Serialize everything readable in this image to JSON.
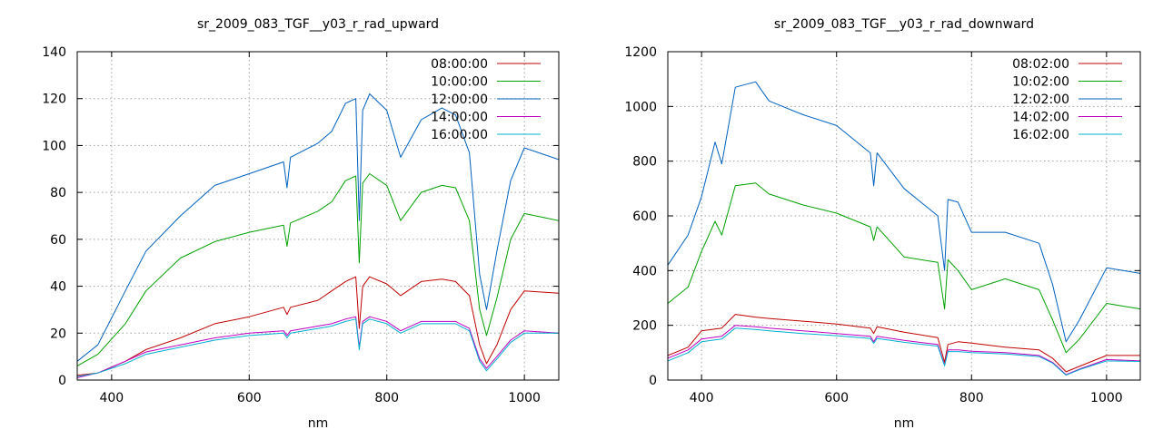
{
  "chart_data": [
    {
      "type": "line",
      "title": "sr_2009_083_TGF__y03_r_rad_upward",
      "xlabel": "nm",
      "ylabel": "",
      "xlim": [
        350,
        1050
      ],
      "ylim": [
        0,
        140
      ],
      "xticks": [
        400,
        600,
        800,
        1000
      ],
      "yticks": [
        0,
        20,
        40,
        60,
        80,
        100,
        120,
        140
      ],
      "grid": true,
      "legend_position": "top-right",
      "series": [
        {
          "name": "08:00:00",
          "color": "#c00000",
          "x": [
            350,
            380,
            420,
            450,
            500,
            550,
            600,
            650,
            655,
            660,
            700,
            720,
            740,
            755,
            760,
            765,
            775,
            800,
            820,
            850,
            880,
            900,
            920,
            935,
            945,
            960,
            980,
            1000,
            1050
          ],
          "y": [
            2,
            3,
            8,
            13,
            18,
            24,
            27,
            31,
            28,
            31,
            34,
            38,
            42,
            44,
            22,
            40,
            44,
            41,
            36,
            42,
            43,
            42,
            36,
            15,
            7,
            15,
            30,
            38,
            37
          ]
        },
        {
          "name": "10:00:00",
          "color": "#00a000",
          "x": [
            350,
            380,
            420,
            450,
            500,
            550,
            600,
            650,
            655,
            660,
            700,
            720,
            740,
            755,
            760,
            765,
            775,
            800,
            820,
            850,
            880,
            900,
            920,
            935,
            945,
            960,
            980,
            1000,
            1050
          ],
          "y": [
            6,
            11,
            24,
            38,
            52,
            59,
            63,
            66,
            57,
            67,
            72,
            76,
            85,
            87,
            50,
            84,
            88,
            83,
            68,
            80,
            83,
            82,
            68,
            30,
            19,
            35,
            60,
            71,
            68
          ]
        },
        {
          "name": "12:00:00",
          "color": "#0060c0",
          "x": [
            350,
            380,
            420,
            450,
            500,
            550,
            600,
            650,
            655,
            660,
            700,
            720,
            740,
            755,
            760,
            765,
            775,
            800,
            820,
            850,
            880,
            900,
            920,
            935,
            945,
            960,
            980,
            1000,
            1050
          ],
          "y": [
            8,
            15,
            38,
            55,
            70,
            83,
            88,
            93,
            82,
            95,
            101,
            106,
            118,
            120,
            68,
            115,
            122,
            115,
            95,
            111,
            116,
            113,
            97,
            45,
            30,
            55,
            85,
            99,
            94
          ]
        },
        {
          "name": "14:00:00",
          "color": "#c000c0",
          "x": [
            350,
            380,
            420,
            450,
            500,
            550,
            600,
            650,
            655,
            660,
            700,
            720,
            740,
            755,
            760,
            765,
            775,
            800,
            820,
            850,
            880,
            900,
            920,
            935,
            945,
            960,
            980,
            1000,
            1050
          ],
          "y": [
            1,
            3,
            8,
            12,
            15,
            18,
            20,
            21,
            19,
            21,
            23,
            24,
            26,
            27,
            14,
            25,
            27,
            25,
            21,
            25,
            25,
            25,
            22,
            9,
            5,
            10,
            17,
            21,
            20
          ]
        },
        {
          "name": "16:00:00",
          "color": "#00b0d0",
          "x": [
            350,
            380,
            420,
            450,
            500,
            550,
            600,
            650,
            655,
            660,
            700,
            720,
            740,
            755,
            760,
            765,
            775,
            800,
            820,
            850,
            880,
            900,
            920,
            935,
            945,
            960,
            980,
            1000,
            1050
          ],
          "y": [
            1.5,
            3,
            7,
            11,
            14,
            17,
            19,
            20,
            18,
            20,
            22,
            23,
            25,
            26,
            13,
            24,
            26,
            24,
            20,
            24,
            24,
            24,
            21,
            8,
            4,
            9,
            16,
            20,
            20
          ]
        }
      ]
    },
    {
      "type": "line",
      "title": "sr_2009_083_TGF__y03_r_rad_downward",
      "xlabel": "nm",
      "ylabel": "",
      "xlim": [
        350,
        1050
      ],
      "ylim": [
        0,
        1200
      ],
      "xticks": [
        400,
        600,
        800,
        1000
      ],
      "yticks": [
        0,
        200,
        400,
        600,
        800,
        1000,
        1200
      ],
      "grid": true,
      "legend_position": "top-right",
      "series": [
        {
          "name": "08:02:00",
          "color": "#c00000",
          "x": [
            350,
            380,
            400,
            430,
            450,
            480,
            500,
            550,
            600,
            650,
            655,
            660,
            700,
            750,
            760,
            765,
            780,
            800,
            850,
            900,
            920,
            940,
            960,
            1000,
            1050
          ],
          "y": [
            90,
            120,
            180,
            190,
            240,
            230,
            225,
            215,
            205,
            190,
            170,
            195,
            175,
            155,
            65,
            130,
            140,
            135,
            120,
            110,
            80,
            30,
            50,
            90,
            90
          ]
        },
        {
          "name": "10:02:00",
          "color": "#00a000",
          "x": [
            350,
            380,
            400,
            420,
            430,
            450,
            480,
            500,
            550,
            600,
            650,
            655,
            660,
            700,
            750,
            760,
            765,
            780,
            800,
            850,
            900,
            920,
            940,
            960,
            1000,
            1050
          ],
          "y": [
            280,
            340,
            470,
            580,
            530,
            710,
            720,
            680,
            640,
            610,
            560,
            510,
            560,
            450,
            430,
            260,
            440,
            400,
            330,
            370,
            330,
            220,
            100,
            150,
            280,
            260
          ]
        },
        {
          "name": "12:02:00",
          "color": "#0060c0",
          "x": [
            350,
            380,
            400,
            420,
            430,
            450,
            480,
            500,
            550,
            600,
            650,
            655,
            660,
            700,
            750,
            760,
            765,
            780,
            800,
            850,
            900,
            920,
            940,
            960,
            1000,
            1050
          ],
          "y": [
            420,
            530,
            670,
            870,
            790,
            1070,
            1090,
            1020,
            970,
            930,
            830,
            710,
            830,
            700,
            600,
            400,
            660,
            650,
            540,
            540,
            500,
            350,
            140,
            220,
            410,
            390
          ]
        },
        {
          "name": "14:02:00",
          "color": "#c000c0",
          "x": [
            350,
            380,
            400,
            430,
            450,
            480,
            500,
            550,
            600,
            650,
            655,
            660,
            700,
            750,
            760,
            765,
            780,
            800,
            850,
            900,
            920,
            940,
            960,
            1000,
            1050
          ],
          "y": [
            80,
            110,
            150,
            160,
            200,
            195,
            190,
            180,
            170,
            160,
            140,
            160,
            145,
            130,
            55,
            110,
            110,
            105,
            100,
            90,
            65,
            20,
            40,
            75,
            70
          ]
        },
        {
          "name": "16:02:00",
          "color": "#00b0d0",
          "x": [
            350,
            380,
            400,
            430,
            450,
            480,
            500,
            550,
            600,
            650,
            655,
            660,
            700,
            750,
            760,
            765,
            780,
            800,
            850,
            900,
            920,
            940,
            960,
            1000,
            1050
          ],
          "y": [
            70,
            100,
            140,
            150,
            190,
            185,
            180,
            170,
            162,
            152,
            134,
            152,
            138,
            124,
            52,
            104,
            104,
            100,
            95,
            86,
            62,
            18,
            38,
            70,
            68
          ]
        }
      ]
    }
  ]
}
